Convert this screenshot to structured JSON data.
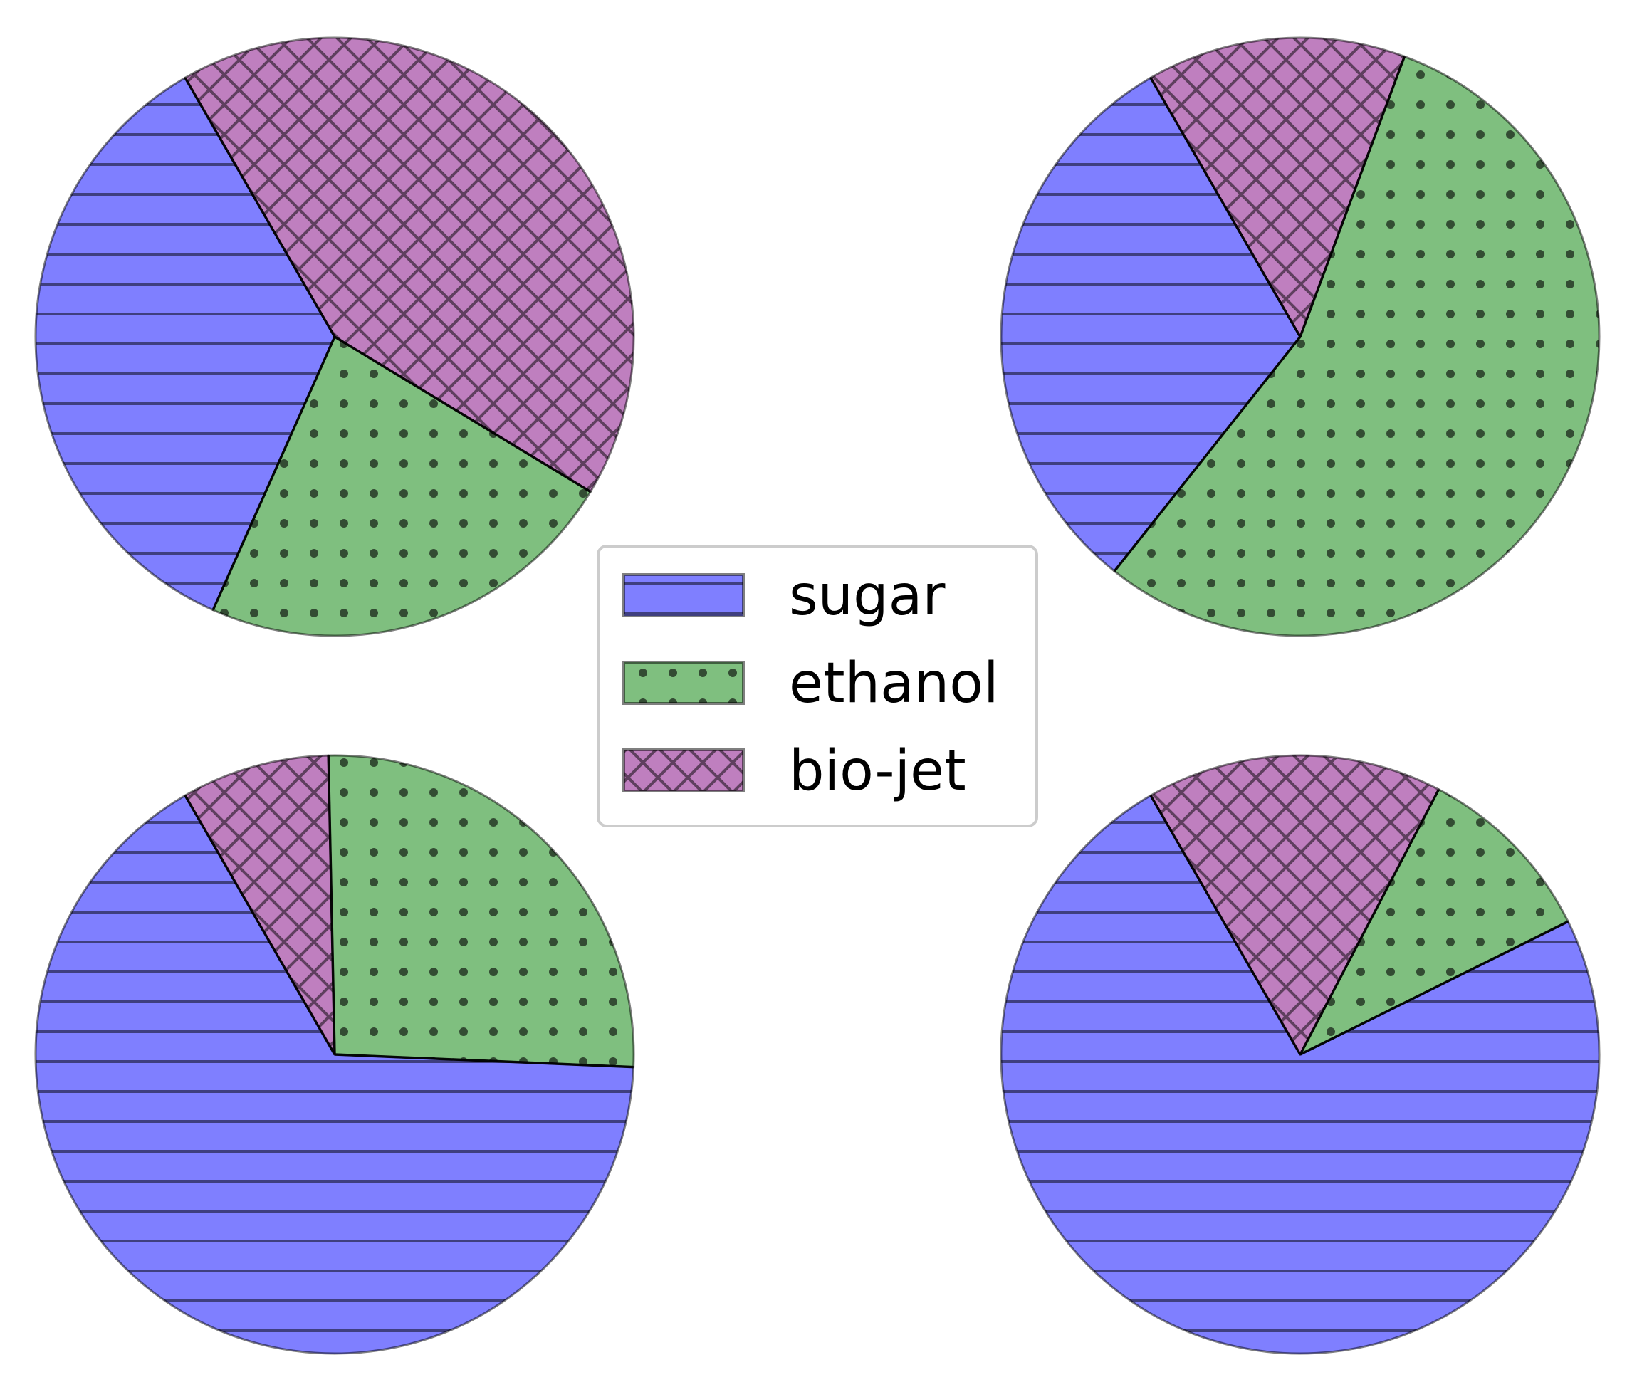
{
  "chart_data": [
    {
      "type": "pie",
      "position": "top-left",
      "categories": [
        "sugar",
        "ethanol",
        "bio-jet"
      ],
      "values": [
        0.35,
        0.23,
        0.42
      ],
      "startangle": 120,
      "counterclockwise": true
    },
    {
      "type": "pie",
      "position": "top-right",
      "categories": [
        "sugar",
        "ethanol",
        "bio-jet"
      ],
      "values": [
        0.31,
        0.55,
        0.14
      ],
      "startangle": 120,
      "counterclockwise": true
    },
    {
      "type": "pie",
      "position": "bottom-left",
      "categories": [
        "sugar",
        "ethanol",
        "bio-jet"
      ],
      "values": [
        0.66,
        0.26,
        0.08
      ],
      "startangle": 120,
      "counterclockwise": true
    },
    {
      "type": "pie",
      "position": "bottom-right",
      "categories": [
        "sugar",
        "ethanol",
        "bio-jet"
      ],
      "values": [
        0.74,
        0.1,
        0.16
      ],
      "startangle": 120,
      "counterclockwise": true
    }
  ],
  "legend": {
    "placement": "center",
    "entries": [
      {
        "label": "sugar",
        "color": "#0000ff",
        "hatch": "horizontal-lines"
      },
      {
        "label": "ethanol",
        "color": "#008000",
        "hatch": "dots"
      },
      {
        "label": "bio-jet",
        "color": "#800080",
        "hatch": "cross-diagonal"
      }
    ]
  },
  "style": {
    "fill_alpha": 0.5,
    "edge_color": "#000000"
  }
}
